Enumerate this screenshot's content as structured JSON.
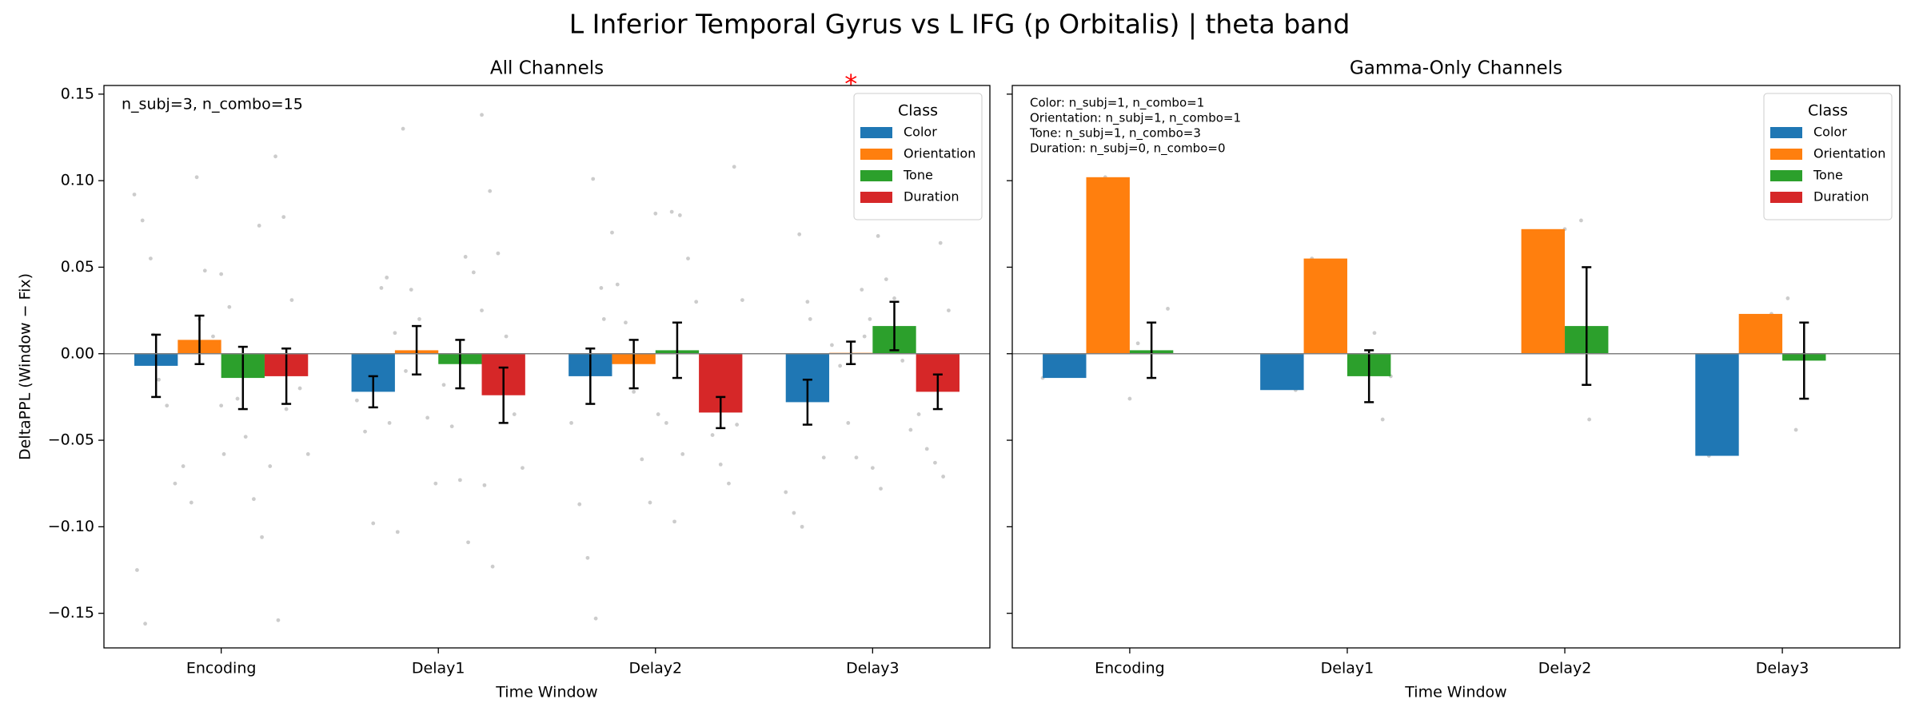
{
  "title": "L Inferior Temporal Gyrus vs L IFG (p Orbitalis)  |  theta band",
  "chart_data": [
    {
      "type": "bar",
      "title": "All Channels",
      "xlabel": "Time Window",
      "ylabel": "DeltaPPL (Window − Fix)",
      "annotation": [
        "n_subj=3, n_combo=15"
      ],
      "categories": [
        "Encoding",
        "Delay1",
        "Delay2",
        "Delay3"
      ],
      "ylim": [
        -0.17,
        0.155
      ],
      "yticks": [
        {
          "value": -0.15,
          "label": "−0.15"
        },
        {
          "value": -0.1,
          "label": "−0.10"
        },
        {
          "value": -0.05,
          "label": "−0.05"
        },
        {
          "value": 0,
          "label": "0.00"
        },
        {
          "value": 0.05,
          "label": "0.05"
        },
        {
          "value": 0.1,
          "label": "0.10"
        },
        {
          "value": 0.15,
          "label": "0.15"
        }
      ],
      "show_ytick_labels": true,
      "legend": {
        "title": "Class",
        "loc": "upper right"
      },
      "significance": [
        {
          "category": 3,
          "series": 1,
          "label": "*",
          "color": "#ff0000"
        }
      ],
      "series": [
        {
          "name": "Color",
          "color": "#1f77b4",
          "values": [
            -0.007,
            -0.022,
            -0.013,
            -0.028
          ],
          "errors": [
            0.018,
            0.009,
            0.016,
            0.013
          ],
          "points": [
            [
              0.092,
              0.077,
              0.055,
              -0.015,
              -0.03,
              -0.075,
              -0.125,
              -0.156,
              0.011
            ],
            [
              0.044,
              0.012,
              -0.027,
              -0.045,
              -0.098,
              0.038,
              -0.04
            ],
            [
              0.101,
              0.038,
              -0.011,
              -0.04,
              -0.087,
              -0.118,
              -0.153,
              0.02
            ],
            [
              0.069,
              0.03,
              -0.012,
              -0.06,
              -0.08,
              -0.092,
              -0.1,
              0.02
            ]
          ]
        },
        {
          "name": "Orientation",
          "color": "#ff7f0e",
          "values": [
            0.008,
            0.002,
            -0.006,
            0.0005
          ],
          "errors": [
            0.014,
            0.014,
            0.014,
            0.0065
          ],
          "points": [
            [
              0.102,
              0.048,
              0.01,
              -0.03,
              -0.065,
              -0.086,
              0.02
            ],
            [
              0.13,
              0.037,
              0.02,
              -0.037,
              -0.075,
              -0.103,
              -0.01
            ],
            [
              0.081,
              0.04,
              0.018,
              -0.022,
              -0.061,
              -0.086,
              0.07
            ],
            [
              0.037,
              0.02,
              0.005,
              -0.007,
              -0.04,
              -0.06,
              0.01
            ]
          ]
        },
        {
          "name": "Tone",
          "color": "#2ca02c",
          "values": [
            -0.014,
            -0.006,
            0.002,
            0.016
          ],
          "errors": [
            0.018,
            0.014,
            0.016,
            0.014
          ],
          "points": [
            [
              0.074,
              0.046,
              0.027,
              -0.026,
              -0.048,
              -0.084,
              -0.106,
              -0.058
            ],
            [
              0.056,
              0.047,
              0.025,
              -0.018,
              -0.042,
              -0.073,
              -0.109,
              -0.005
            ],
            [
              0.082,
              0.08,
              0.055,
              0.03,
              -0.035,
              -0.04,
              -0.097,
              -0.058
            ],
            [
              0.068,
              0.043,
              0.032,
              -0.004,
              -0.044,
              -0.066,
              -0.078
            ]
          ]
        },
        {
          "name": "Duration",
          "color": "#d62728",
          "values": [
            -0.013,
            -0.024,
            -0.034,
            -0.022
          ],
          "errors": [
            0.016,
            0.016,
            0.009,
            0.01
          ],
          "points": [
            [
              0.114,
              0.079,
              0.031,
              -0.02,
              -0.058,
              -0.065,
              -0.154,
              -0.032
            ],
            [
              0.138,
              0.094,
              0.058,
              0.01,
              -0.035,
              -0.066,
              -0.076,
              -0.123
            ],
            [
              0.108,
              0.031,
              -0.005,
              -0.047,
              -0.064,
              -0.075,
              -0.041
            ],
            [
              0.064,
              0.025,
              -0.01,
              -0.035,
              -0.055,
              -0.063,
              -0.071
            ]
          ]
        }
      ]
    },
    {
      "type": "bar",
      "title": "Gamma-Only Channels",
      "xlabel": "Time Window",
      "annotation": [
        "Color: n_subj=1, n_combo=1",
        "Orientation: n_subj=1, n_combo=1",
        "Tone: n_subj=1, n_combo=3",
        "Duration: n_subj=0, n_combo=0"
      ],
      "categories": [
        "Encoding",
        "Delay1",
        "Delay2",
        "Delay3"
      ],
      "ylim": [
        -0.17,
        0.155
      ],
      "yticks": [
        -0.15,
        -0.1,
        -0.05,
        0,
        0.05,
        0.1,
        0.15
      ],
      "show_ytick_labels": false,
      "legend": {
        "title": "Class",
        "loc": "upper right"
      },
      "series": [
        {
          "name": "Color",
          "color": "#1f77b4",
          "values": [
            -0.014,
            -0.021,
            null,
            -0.059
          ],
          "errors": [
            null,
            null,
            null,
            null
          ],
          "points": [
            [
              -0.014
            ],
            [
              -0.021
            ],
            [],
            [
              -0.059
            ]
          ]
        },
        {
          "name": "Orientation",
          "color": "#ff7f0e",
          "values": [
            0.102,
            0.055,
            0.072,
            0.023
          ],
          "errors": [
            null,
            null,
            null,
            null
          ],
          "points": [
            [
              0.102
            ],
            [
              0.055
            ],
            [
              0.072
            ],
            [
              0.023
            ]
          ]
        },
        {
          "name": "Tone",
          "color": "#2ca02c",
          "values": [
            0.002,
            -0.013,
            0.016,
            -0.004
          ],
          "errors": [
            0.016,
            0.015,
            0.034,
            0.022
          ],
          "points": [
            [
              0.026,
              -0.026,
              0.006
            ],
            [
              0.012,
              -0.038,
              -0.013
            ],
            [
              0.077,
              -0.038,
              0.01
            ],
            [
              0.032,
              -0.044,
              0.0
            ]
          ]
        },
        {
          "name": "Duration",
          "color": "#d62728",
          "values": [
            null,
            null,
            null,
            null
          ],
          "errors": [
            null,
            null,
            null,
            null
          ],
          "points": [
            [],
            [],
            [],
            []
          ]
        }
      ]
    }
  ]
}
